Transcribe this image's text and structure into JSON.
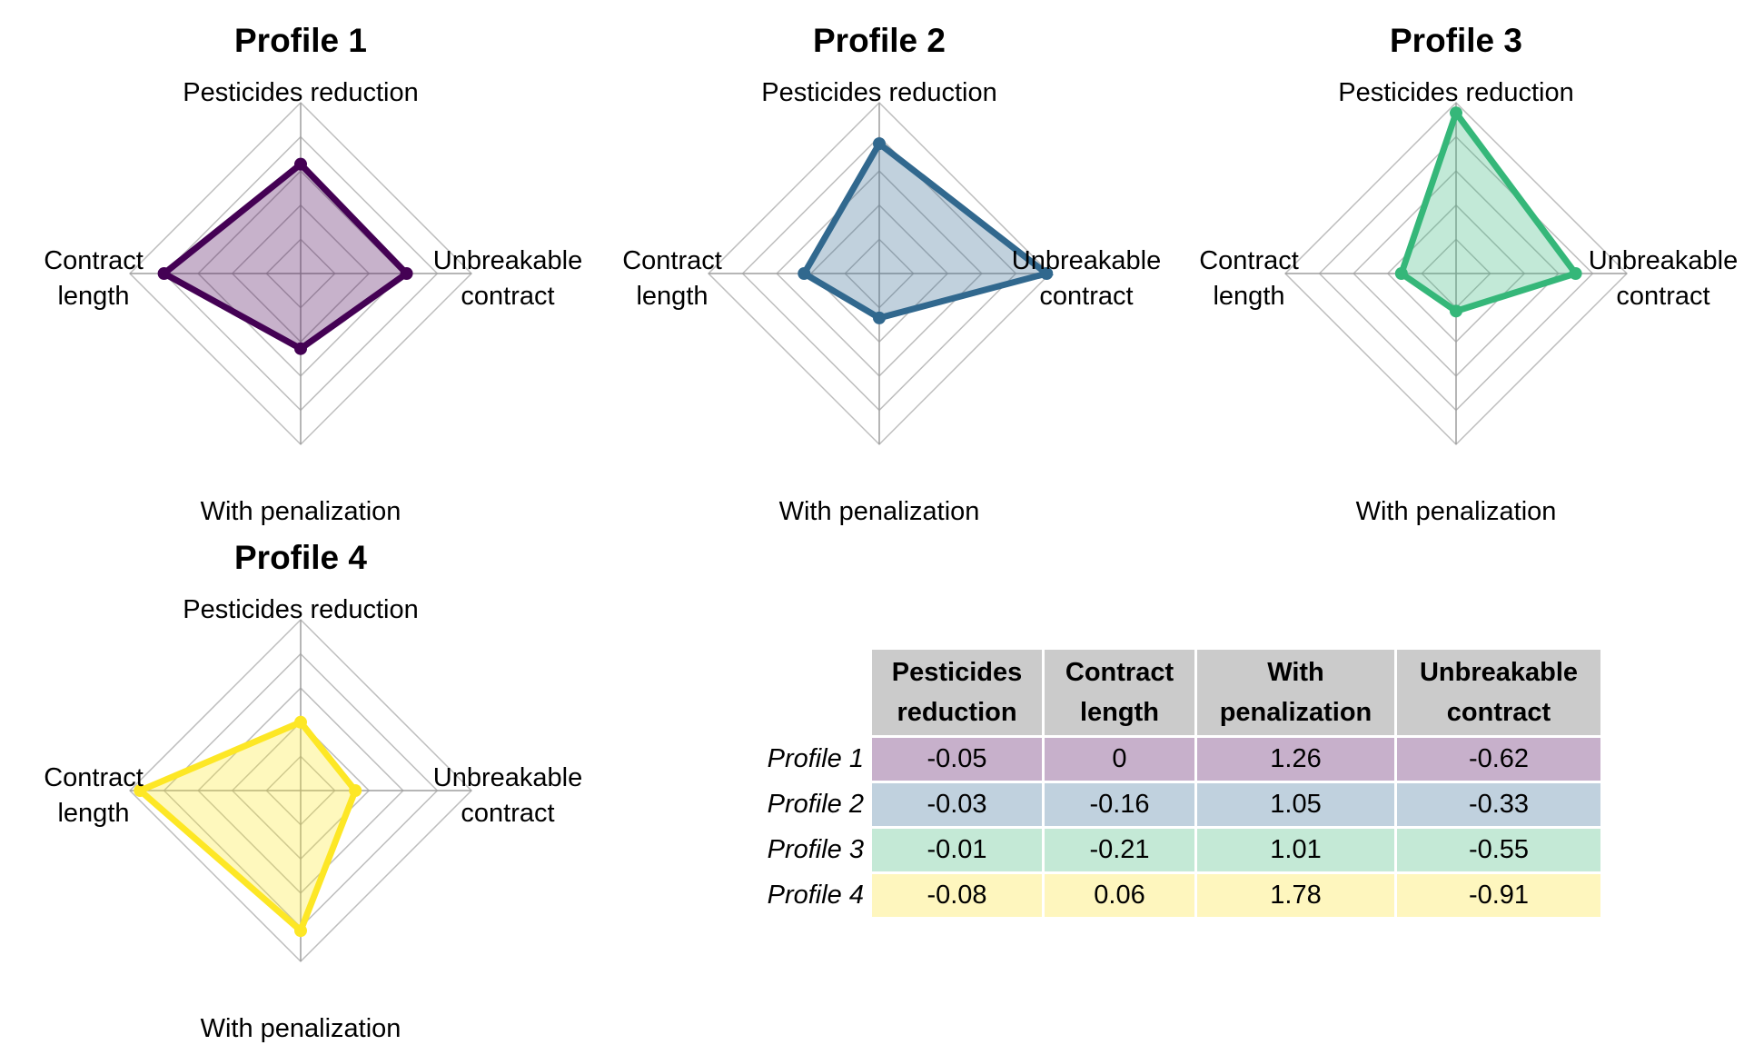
{
  "chart_data": {
    "type": "radar",
    "axes": [
      "Pesticides reduction",
      "Unbreakable contract",
      "With penalization",
      "Contract length"
    ],
    "axis_labels": {
      "top": "Pesticides reduction",
      "right": [
        "Unbreakable",
        "contract"
      ],
      "bottom": "With penalization",
      "left": [
        "Contract",
        "length"
      ]
    },
    "grid_levels": 5,
    "profiles": [
      {
        "name": "Profile 1",
        "color": "#440154",
        "fill": "#c7b0cb",
        "values": {
          "Pesticides reduction": 0.64,
          "Unbreakable contract": 0.62,
          "With penalization": 0.44,
          "Contract length": 0.8
        }
      },
      {
        "name": "Profile 2",
        "color": "#31688e",
        "fill": "#c0d1de",
        "values": {
          "Pesticides reduction": 0.76,
          "Unbreakable contract": 0.98,
          "With penalization": 0.26,
          "Contract length": 0.44
        }
      },
      {
        "name": "Profile 3",
        "color": "#35b779",
        "fill": "#c4e9d6",
        "values": {
          "Pesticides reduction": 0.94,
          "Unbreakable contract": 0.7,
          "With penalization": 0.22,
          "Contract length": 0.32
        }
      },
      {
        "name": "Profile 4",
        "color": "#fde725",
        "fill": "#fef6be",
        "values": {
          "Pesticides reduction": 0.4,
          "Unbreakable contract": 0.32,
          "With penalization": 0.82,
          "Contract length": 0.94
        }
      }
    ],
    "table": {
      "columns": [
        [
          "Pesticides",
          "reduction"
        ],
        [
          "Contract",
          "length"
        ],
        [
          "With",
          "penalization"
        ],
        [
          "Unbreakable",
          "contract"
        ]
      ],
      "rows": [
        {
          "label": "Profile 1",
          "fill": "#c7b0cb",
          "cells": [
            "-0.05",
            "0",
            "1.26",
            "-0.62"
          ]
        },
        {
          "label": "Profile 2",
          "fill": "#c0d1de",
          "cells": [
            "-0.03",
            "-0.16",
            "1.05",
            "-0.33"
          ]
        },
        {
          "label": "Profile 3",
          "fill": "#c4e9d6",
          "cells": [
            "-0.01",
            "-0.21",
            "1.01",
            "-0.55"
          ]
        },
        {
          "label": "Profile 4",
          "fill": "#fef6be",
          "cells": [
            "-0.08",
            "0.06",
            "1.78",
            "-0.91"
          ]
        }
      ]
    }
  }
}
